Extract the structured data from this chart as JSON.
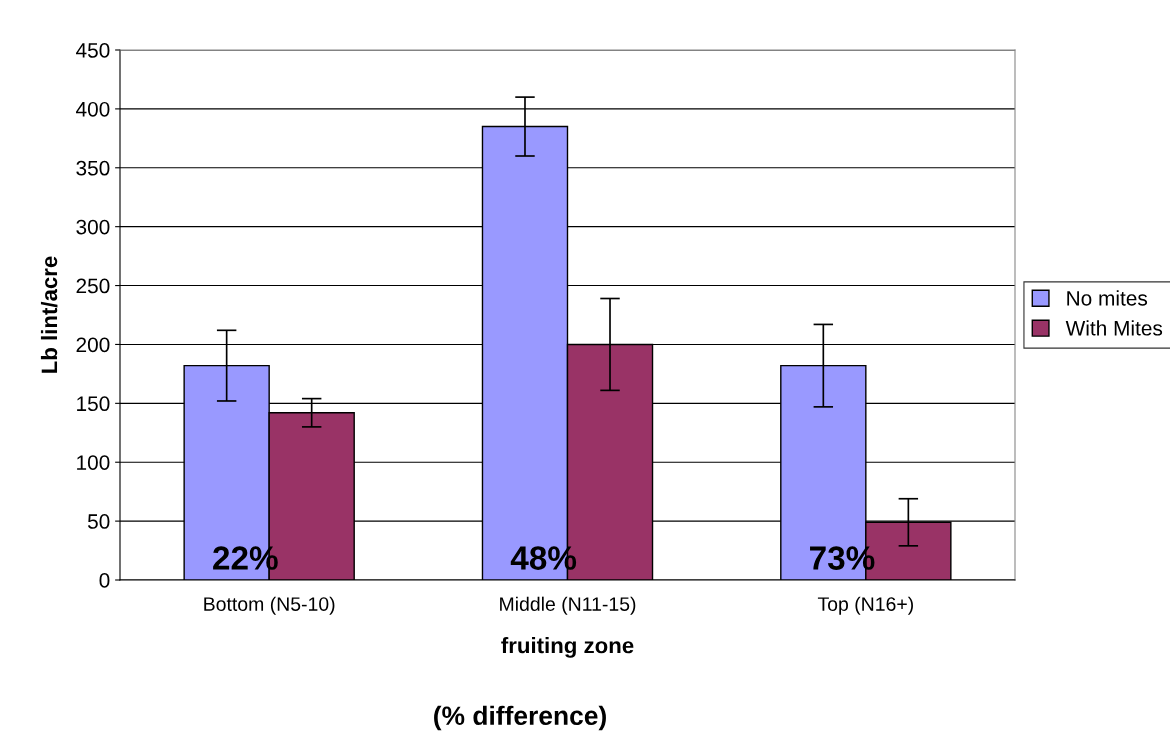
{
  "chart_data": {
    "type": "bar",
    "xlabel": "fruiting zone",
    "ylabel": "Lb lint/acre",
    "categories": [
      "Bottom (N5-10)",
      "Middle (N11-15)",
      "Top (N16+)"
    ],
    "series": [
      {
        "name": "No mites",
        "color": "#9999ff",
        "values": [
          182,
          385,
          182
        ],
        "errors": [
          30,
          25,
          35
        ]
      },
      {
        "name": "With Mites",
        "color": "#993366",
        "values": [
          142,
          200,
          49
        ],
        "errors": [
          12,
          39,
          20
        ]
      }
    ],
    "ylim": [
      0,
      450
    ],
    "yticks": [
      0,
      50,
      100,
      150,
      200,
      250,
      300,
      350,
      400,
      450
    ],
    "grid": "y",
    "legend": "right",
    "annotations": [
      "22%",
      "48%",
      "73%",
      "(% difference)"
    ]
  }
}
